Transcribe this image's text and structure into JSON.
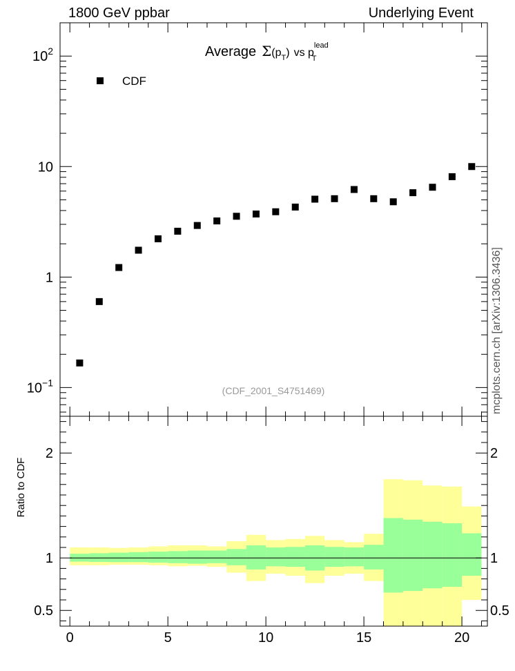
{
  "header": {
    "left": "1800 GeV ppbar",
    "right": "Underlying Event"
  },
  "side_label": "mcplots.cern.ch [arXiv:1306.3436]",
  "chart_data": [
    {
      "type": "scatter",
      "title_parts": {
        "prefix": "Average",
        "sigma": "Σ",
        "open": "(p",
        "sub1": "T",
        "close": ")",
        "vs": "vs p",
        "sup": "lead",
        "sub2": "T"
      },
      "y_scale": "log",
      "ylim": [
        0.055,
        200
      ],
      "xlim": [
        -0.5,
        21.3
      ],
      "y_tick_labels": [
        {
          "value": 100,
          "base": "10",
          "exp": "2"
        },
        {
          "value": 10,
          "base": "10",
          "exp": ""
        },
        {
          "value": 1,
          "base": "1",
          "exp": ""
        },
        {
          "value": 0.1,
          "base": "10",
          "exp": "−1"
        }
      ],
      "legend": {
        "placement": "top-left",
        "entry": "CDF"
      },
      "annotation": "(CDF_2001_S4751469)",
      "series": [
        {
          "name": "CDF",
          "x": [
            0.5,
            1.5,
            2.5,
            3.5,
            4.5,
            5.5,
            6.5,
            7.5,
            8.5,
            9.5,
            10.5,
            11.5,
            12.5,
            13.5,
            14.5,
            15.5,
            16.5,
            17.5,
            18.5,
            19.5,
            20.5
          ],
          "y": [
            0.167,
            0.6,
            1.22,
            1.75,
            2.22,
            2.6,
            2.93,
            3.22,
            3.55,
            3.72,
            3.9,
            4.3,
            5.07,
            5.12,
            6.2,
            5.12,
            4.8,
            5.8,
            6.5,
            8.1,
            10.0
          ]
        }
      ]
    },
    {
      "type": "area",
      "ylabel": "Ratio to CDF",
      "ylim": [
        0.35,
        2.35
      ],
      "xlim": [
        -0.5,
        21.3
      ],
      "x_ticks": [
        0,
        5,
        10,
        15,
        20
      ],
      "y_ticks": [
        0.5,
        1,
        2
      ],
      "reference_line": 1,
      "bin_edges": [
        0,
        1,
        2,
        3,
        4,
        5,
        6,
        7,
        8,
        9,
        10,
        11,
        12,
        13,
        14,
        15,
        16,
        17,
        18,
        19,
        20,
        21
      ],
      "bands": [
        {
          "color": "#ffff99",
          "low": [
            0.93,
            0.93,
            0.935,
            0.935,
            0.93,
            0.92,
            0.925,
            0.915,
            0.86,
            0.78,
            0.85,
            0.83,
            0.76,
            0.83,
            0.85,
            0.78,
            0.35,
            0.35,
            0.35,
            0.35,
            0.6
          ],
          "high": [
            1.1,
            1.1,
            1.095,
            1.1,
            1.11,
            1.12,
            1.12,
            1.11,
            1.16,
            1.22,
            1.17,
            1.18,
            1.21,
            1.17,
            1.15,
            1.23,
            1.75,
            1.74,
            1.69,
            1.68,
            1.49
          ]
        },
        {
          "color": "#99ff99",
          "low": [
            0.965,
            0.962,
            0.96,
            0.96,
            0.955,
            0.95,
            0.945,
            0.95,
            0.93,
            0.89,
            0.92,
            0.915,
            0.88,
            0.915,
            0.92,
            0.89,
            0.67,
            0.685,
            0.71,
            0.725,
            0.83
          ],
          "high": [
            1.04,
            1.045,
            1.05,
            1.055,
            1.06,
            1.065,
            1.07,
            1.07,
            1.085,
            1.12,
            1.1,
            1.105,
            1.12,
            1.105,
            1.1,
            1.125,
            1.38,
            1.365,
            1.345,
            1.33,
            1.235
          ]
        }
      ]
    }
  ]
}
